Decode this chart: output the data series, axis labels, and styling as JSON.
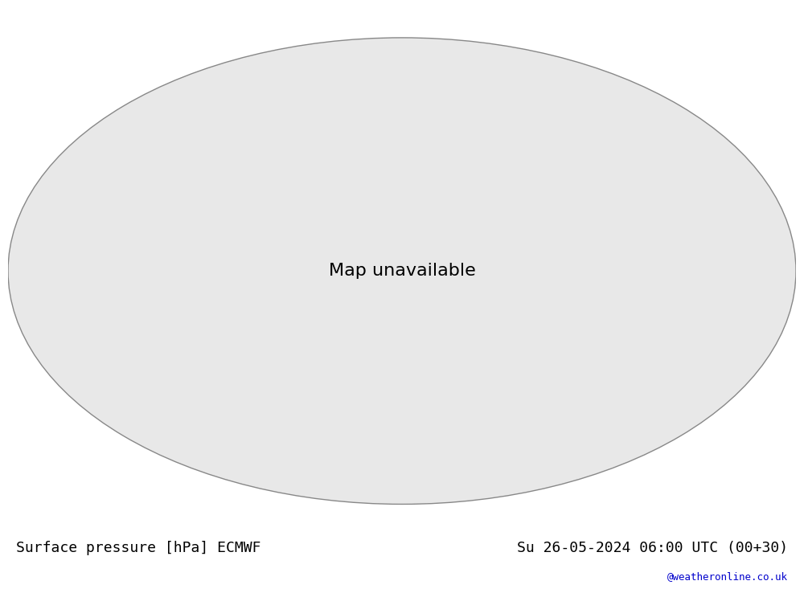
{
  "title_left": "Surface pressure [hPa] ECMWF",
  "title_right": "Su 26-05-2024 06:00 UTC (00+30)",
  "watermark": "@weatheronline.co.uk",
  "bg_color": "#ffffff",
  "land_color": "#b5d89a",
  "ocean_color": "#e8e8e8",
  "contour_color_low": "#0000cc",
  "contour_color_high": "#cc0000",
  "contour_color_1013": "#000000",
  "title_font_size": 13,
  "watermark_color": "#0000cc",
  "figsize": [
    10.0,
    7.33
  ],
  "dpi": 100
}
